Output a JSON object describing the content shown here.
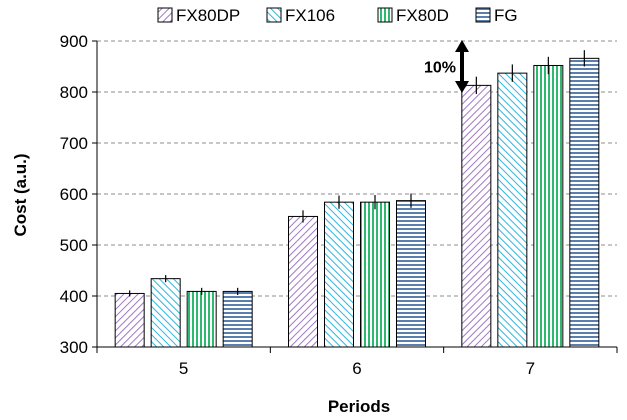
{
  "chart_data": {
    "type": "bar",
    "categories": [
      "5",
      "6",
      "7"
    ],
    "series": [
      {
        "name": "FX80DP",
        "values": [
          405,
          556,
          813
        ],
        "errors": [
          6,
          12,
          17
        ],
        "color": "#a078c4",
        "pattern": "diag-down"
      },
      {
        "name": "FX106",
        "values": [
          434,
          584,
          837
        ],
        "errors": [
          7,
          13,
          17
        ],
        "color": "#2eb5e0",
        "pattern": "diag-up"
      },
      {
        "name": "FX80D",
        "values": [
          409,
          584,
          852
        ],
        "errors": [
          7,
          14,
          17
        ],
        "color": "#2fb870",
        "pattern": "vertical"
      },
      {
        "name": "FG",
        "values": [
          409,
          587,
          866
        ],
        "errors": [
          7,
          14,
          16
        ],
        "color": "#5a7fae",
        "pattern": "horizontal"
      }
    ],
    "xlabel": "Periods",
    "ylabel": "Cost (a.u.)",
    "ylim": [
      300,
      900
    ],
    "yticks": [
      300,
      400,
      500,
      600,
      700,
      800,
      900
    ],
    "grid": "horizontal dashed",
    "legend_position": "top",
    "annotation": {
      "text": "10%",
      "from": 800,
      "to": 900
    }
  }
}
